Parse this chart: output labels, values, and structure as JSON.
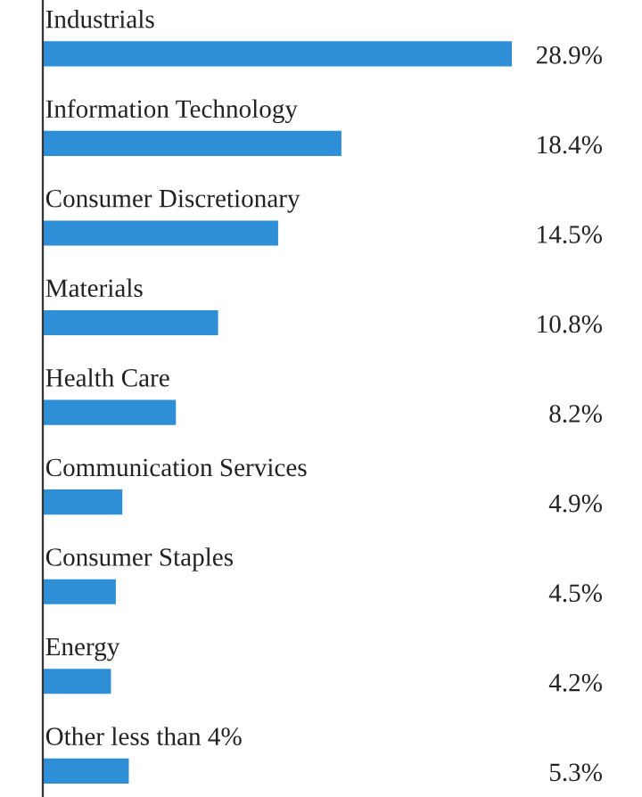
{
  "chart_data": {
    "type": "bar",
    "orientation": "horizontal",
    "categories": [
      "Industrials",
      "Information Technology",
      "Consumer Discretionary",
      "Materials",
      "Health Care",
      "Communication Services",
      "Consumer Staples",
      "Energy",
      "Other less than 4%"
    ],
    "values": [
      28.9,
      18.4,
      14.5,
      10.8,
      8.2,
      4.9,
      4.5,
      4.2,
      5.3
    ],
    "value_labels": [
      "28.9%",
      "18.4%",
      "14.5%",
      "10.8%",
      "8.2%",
      "4.9%",
      "4.5%",
      "4.2%",
      "5.3%"
    ],
    "color": "#2e8fd6",
    "tick_labels": false
  }
}
